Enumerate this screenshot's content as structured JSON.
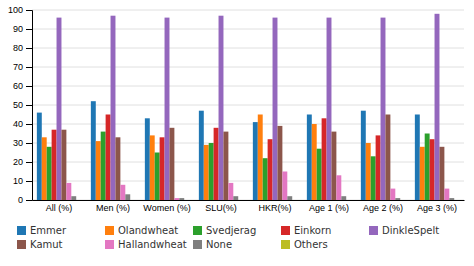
{
  "chart_data": {
    "type": "bar",
    "categories": [
      "All (%)",
      "Men (%)",
      "Women (%)",
      "SLU(%)",
      "HKR(%)",
      "Age 1 (%)",
      "Age 2 (%)",
      "Age 3 (%)"
    ],
    "series": [
      {
        "name": "Emmer",
        "values": [
          46,
          52,
          43,
          47,
          41,
          45,
          47,
          45
        ]
      },
      {
        "name": "Olandwheat",
        "values": [
          33,
          31,
          34,
          29,
          45,
          40,
          30,
          28
        ]
      },
      {
        "name": "Svedjerag",
        "values": [
          28,
          36,
          25,
          30,
          22,
          27,
          23,
          35
        ]
      },
      {
        "name": "Einkorn",
        "values": [
          37,
          45,
          33,
          38,
          32,
          43,
          34,
          32
        ]
      },
      {
        "name": "DinkleSpelt",
        "values": [
          96,
          97,
          96,
          97,
          96,
          96,
          96,
          98
        ]
      },
      {
        "name": "Kamut",
        "values": [
          37,
          33,
          38,
          36,
          39,
          36,
          45,
          28
        ]
      },
      {
        "name": "Hallandwheat",
        "values": [
          9,
          8,
          1,
          9,
          15,
          13,
          6,
          6
        ]
      },
      {
        "name": "None",
        "values": [
          2,
          3,
          1,
          2,
          2,
          2,
          1,
          1
        ]
      },
      {
        "name": "Others",
        "values": [
          0,
          0,
          0,
          0,
          0,
          0,
          0,
          0
        ]
      }
    ],
    "ylim": [
      0,
      100
    ],
    "yticks": [
      0,
      10,
      20,
      30,
      40,
      50,
      60,
      70,
      80,
      90,
      100
    ],
    "grid": true,
    "legend": "bottom"
  }
}
